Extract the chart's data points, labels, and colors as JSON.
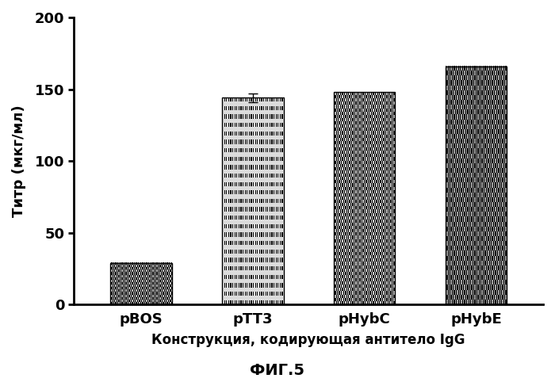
{
  "categories": [
    "pBOS",
    "pTT3",
    "pHybC",
    "pHybE"
  ],
  "values": [
    29,
    144,
    148,
    166
  ],
  "error_bar_pTT3": 3,
  "ylabel": "Титр (мкг/мл)",
  "xlabel": "Конструкция, кодирующая антитело IgG",
  "caption": "ФИГ.5",
  "ylim": [
    0,
    200
  ],
  "yticks": [
    0,
    50,
    100,
    150,
    200
  ],
  "bar_width": 0.55,
  "stipple_patterns": [
    {
      "fg": 0,
      "bg": 255,
      "density": 0.55
    },
    {
      "fg": 0,
      "bg": 255,
      "density": 0.25
    },
    {
      "fg": 0,
      "bg": 255,
      "density": 0.35
    },
    {
      "fg": 0,
      "bg": 255,
      "density": 0.5
    }
  ],
  "background_color": "#ffffff"
}
